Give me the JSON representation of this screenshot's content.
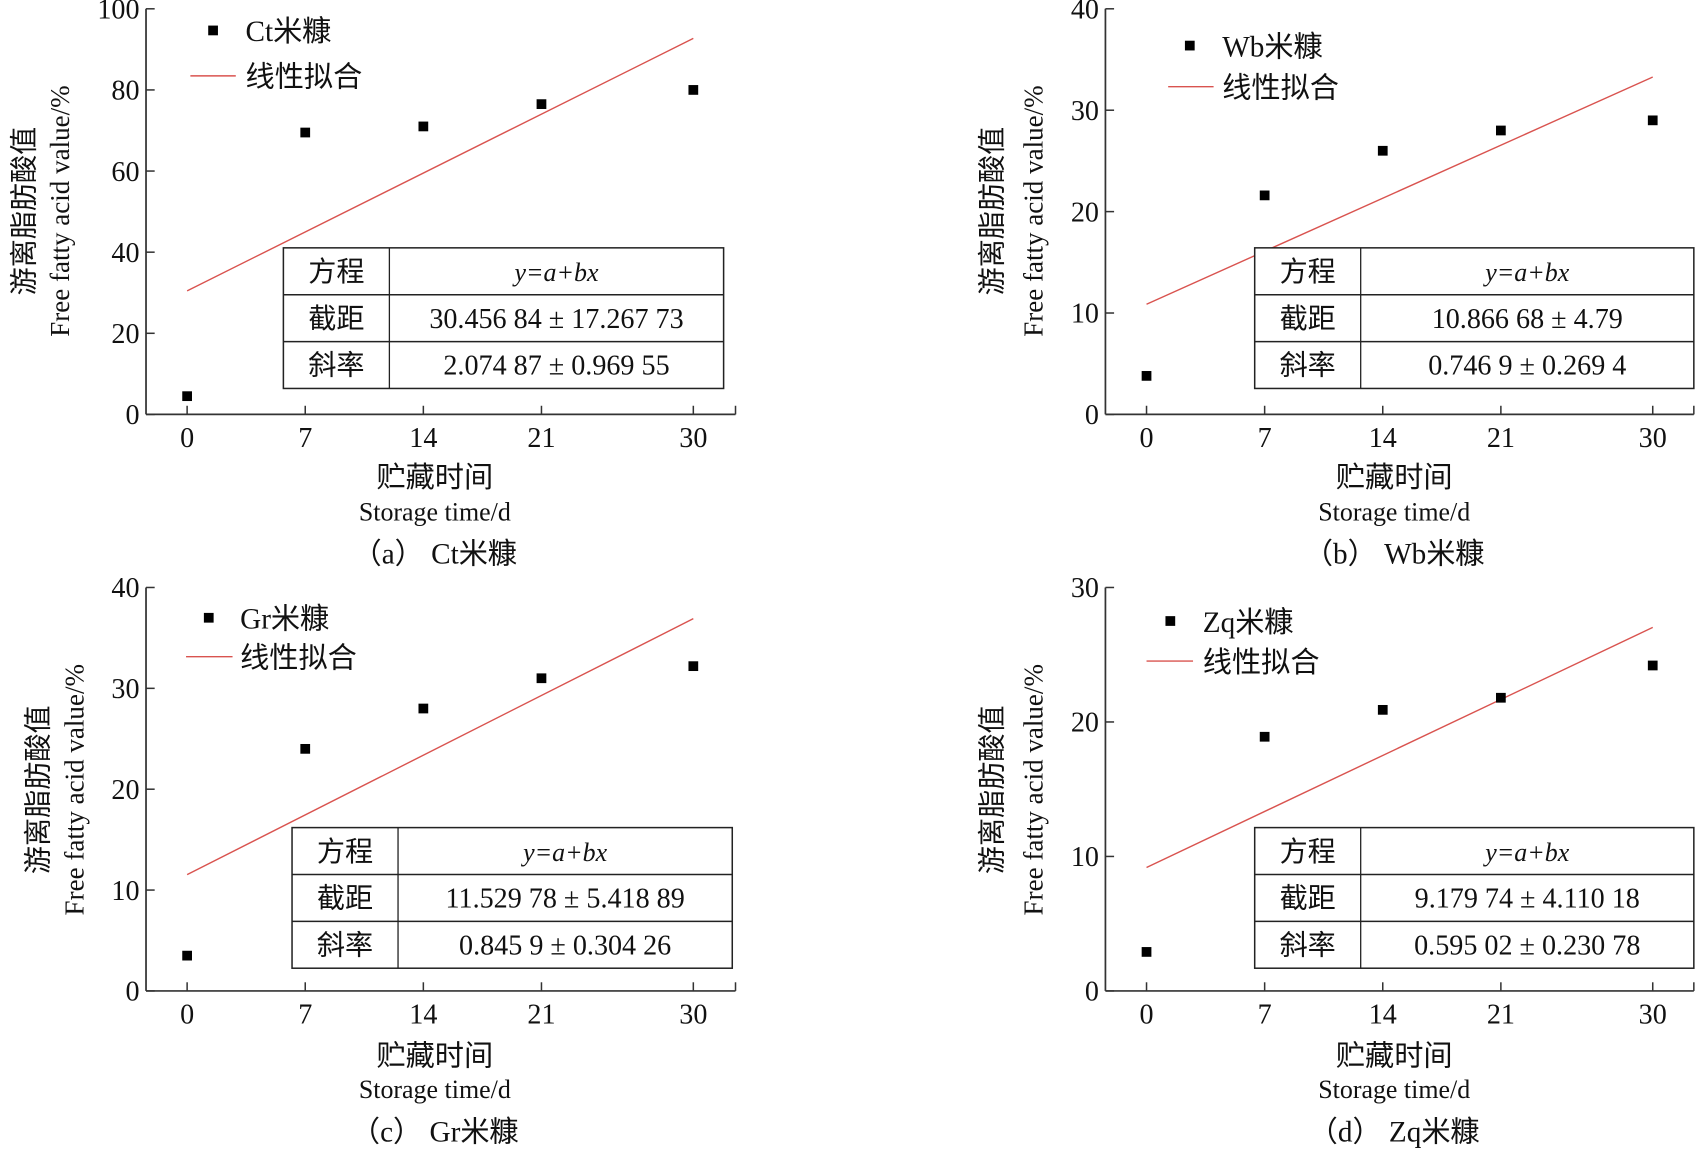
{
  "colors": {
    "fit_line": "#d9534f",
    "points": "#000000",
    "axis": "#333333"
  },
  "chart_data": [
    {
      "type": "scatter",
      "caption": "（a） Ct米糠",
      "xlabel_cn": "贮藏时间",
      "xlabel_en": "Storage time/d",
      "ylabel_cn": "游离脂肪酸值",
      "ylabel_en": "Free fatty acid value/%",
      "x_ticks": [
        0,
        7,
        14,
        21,
        30
      ],
      "y_ticks": [
        0,
        20,
        40,
        60,
        80,
        100
      ],
      "xlim": [
        -2.4,
        32.4
      ],
      "ylim": [
        0,
        100
      ],
      "series": [
        {
          "name": "Ct米糠",
          "kind": "points",
          "x": [
            0,
            7,
            14,
            21,
            30
          ],
          "y": [
            4.5,
            69.5,
            71,
            76.5,
            80
          ]
        },
        {
          "name": "线性拟合",
          "kind": "line",
          "intercept": 30.45684,
          "slope": 2.07487
        }
      ],
      "table": {
        "rows": [
          [
            "方程",
            "y=a+bx"
          ],
          [
            "截距",
            "30.456 84 ± 17.267 73"
          ],
          [
            "斜率",
            "2.074 87 ± 0.969 55"
          ]
        ]
      }
    },
    {
      "type": "scatter",
      "caption": "（b） Wb米糠",
      "xlabel_cn": "贮藏时间",
      "xlabel_en": "Storage time/d",
      "ylabel_cn": "游离脂肪酸值",
      "ylabel_en": "Free fatty acid value/%",
      "x_ticks": [
        0,
        7,
        14,
        21,
        30
      ],
      "y_ticks": [
        0,
        10,
        20,
        30,
        40
      ],
      "xlim": [
        -2.4,
        32.4
      ],
      "ylim": [
        0,
        40
      ],
      "series": [
        {
          "name": "Wb米糠",
          "kind": "points",
          "x": [
            0,
            7,
            14,
            21,
            30
          ],
          "y": [
            3.8,
            21.6,
            26,
            28,
            29
          ]
        },
        {
          "name": "线性拟合",
          "kind": "line",
          "intercept": 10.86668,
          "slope": 0.7469
        }
      ],
      "table": {
        "rows": [
          [
            "方程",
            "y=a+bx"
          ],
          [
            "截距",
            "10.866 68 ± 4.79"
          ],
          [
            "斜率",
            "0.746 9 ± 0.269 4"
          ]
        ]
      }
    },
    {
      "type": "scatter",
      "caption": "（c） Gr米糠",
      "xlabel_cn": "贮藏时间",
      "xlabel_en": "Storage time/d",
      "ylabel_cn": "游离脂肪酸值",
      "ylabel_en": "Free fatty acid value/%",
      "x_ticks": [
        0,
        7,
        14,
        21,
        30
      ],
      "y_ticks": [
        0,
        10,
        20,
        30,
        40
      ],
      "xlim": [
        -2.4,
        32.4
      ],
      "ylim": [
        0,
        40
      ],
      "series": [
        {
          "name": "Gr米糠",
          "kind": "points",
          "x": [
            0,
            7,
            14,
            21,
            30
          ],
          "y": [
            3.5,
            24,
            28,
            31,
            32.2
          ]
        },
        {
          "name": "线性拟合",
          "kind": "line",
          "intercept": 11.52978,
          "slope": 0.8459
        }
      ],
      "table": {
        "rows": [
          [
            "方程",
            "y=a+bx"
          ],
          [
            "截距",
            "11.529 78 ± 5.418 89"
          ],
          [
            "斜率",
            "0.845 9 ± 0.304 26"
          ]
        ]
      }
    },
    {
      "type": "scatter",
      "caption": "（d） Zq米糠",
      "xlabel_cn": "贮藏时间",
      "xlabel_en": "Storage time/d",
      "ylabel_cn": "游离脂肪酸值",
      "ylabel_en": "Free fatty acid value/%",
      "x_ticks": [
        0,
        7,
        14,
        21,
        30
      ],
      "y_ticks": [
        0,
        10,
        20,
        30
      ],
      "xlim": [
        -2.4,
        32.4
      ],
      "ylim": [
        0,
        30
      ],
      "series": [
        {
          "name": "Zq米糠",
          "kind": "points",
          "x": [
            0,
            7,
            14,
            21,
            30
          ],
          "y": [
            2.9,
            18.9,
            20.9,
            21.8,
            24.2
          ]
        },
        {
          "name": "线性拟合",
          "kind": "line",
          "intercept": 9.17974,
          "slope": 0.59502
        }
      ],
      "table": {
        "rows": [
          [
            "方程",
            "y=a+bx"
          ],
          [
            "截距",
            "9.179 74 ± 4.110 18"
          ],
          [
            "斜率",
            "0.595 02 ± 0.230 78"
          ]
        ]
      }
    }
  ]
}
